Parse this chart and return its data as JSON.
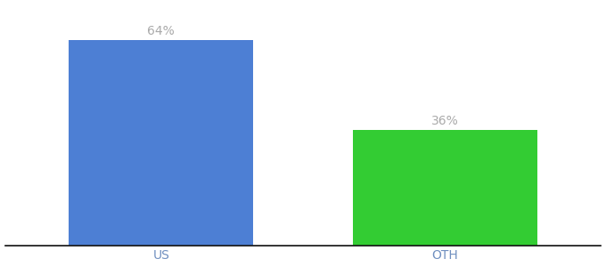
{
  "categories": [
    "US",
    "OTH"
  ],
  "values": [
    64,
    36
  ],
  "bar_colors": [
    "#4d7fd4",
    "#33cc33"
  ],
  "label_color": "#aaaaaa",
  "label_fontsize": 10,
  "xlabel_fontsize": 10,
  "xlabel_color": "#7090c0",
  "background_color": "#ffffff",
  "ylim": [
    0,
    75
  ],
  "bar_width": 0.65,
  "annotations": [
    "64%",
    "36%"
  ],
  "xlim": [
    -0.55,
    1.55
  ]
}
